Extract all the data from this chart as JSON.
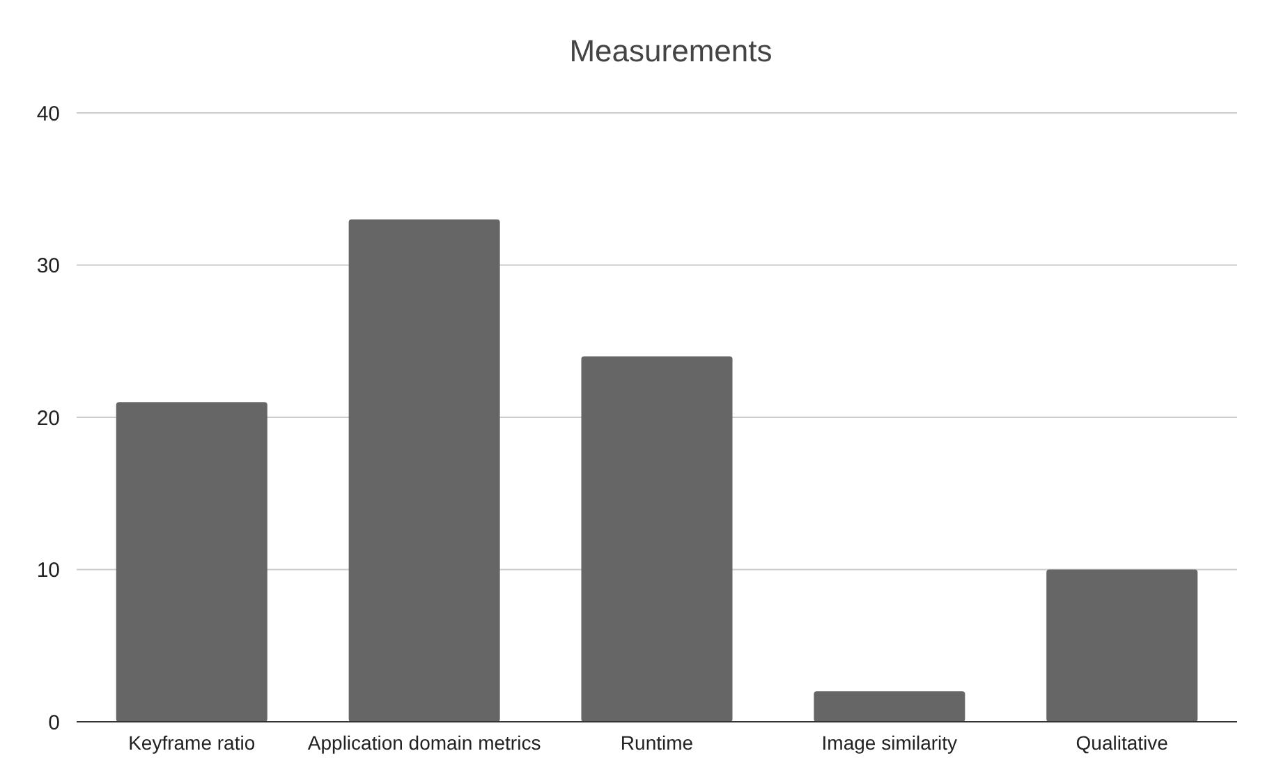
{
  "chart_data": {
    "type": "bar",
    "title": "Measurements",
    "categories": [
      "Keyframe ratio",
      "Application domain metrics",
      "Runtime",
      "Image similarity",
      "Qualitative"
    ],
    "values": [
      21,
      33,
      24,
      2,
      10
    ],
    "color": "#666666",
    "ylim": [
      0,
      40
    ],
    "yticks": [
      0,
      10,
      20,
      30,
      40
    ],
    "grid": "y"
  }
}
